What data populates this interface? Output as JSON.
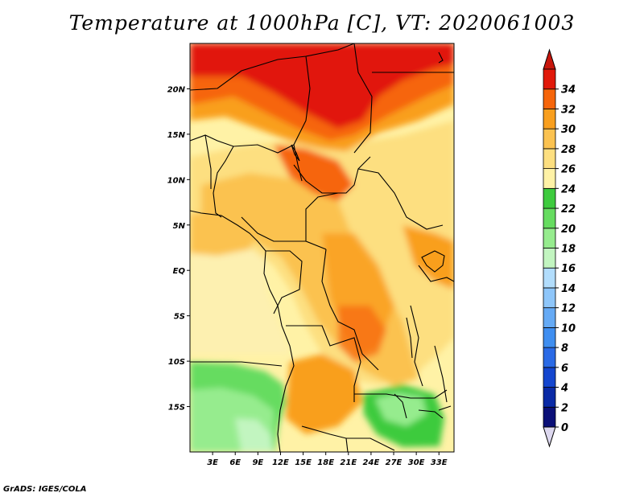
{
  "title": "Temperature at 1000hPa [C], VT: 2020061003",
  "credit": "GrADS: IGES/COLA",
  "map": {
    "lon_range": [
      0,
      35
    ],
    "lat_range": [
      -20,
      25
    ],
    "lat_ticks": [
      {
        "value": 20,
        "label": "20N"
      },
      {
        "value": 15,
        "label": "15N"
      },
      {
        "value": 10,
        "label": "10N"
      },
      {
        "value": 5,
        "label": "5N"
      },
      {
        "value": 0,
        "label": "EQ"
      },
      {
        "value": -5,
        "label": "5S"
      },
      {
        "value": -10,
        "label": "10S"
      },
      {
        "value": -15,
        "label": "15S"
      }
    ],
    "lon_ticks": [
      {
        "value": 3,
        "label": "3E"
      },
      {
        "value": 6,
        "label": "6E"
      },
      {
        "value": 9,
        "label": "9E"
      },
      {
        "value": 12,
        "label": "12E"
      },
      {
        "value": 15,
        "label": "15E"
      },
      {
        "value": 18,
        "label": "18E"
      },
      {
        "value": 21,
        "label": "21E"
      },
      {
        "value": 24,
        "label": "24E"
      },
      {
        "value": 27,
        "label": "27E"
      },
      {
        "value": 30,
        "label": "30E"
      },
      {
        "value": 33,
        "label": "33E"
      }
    ]
  },
  "colorbar": {
    "levels": [
      0,
      2,
      4,
      6,
      8,
      10,
      12,
      14,
      16,
      18,
      20,
      22,
      24,
      26,
      28,
      30,
      32,
      34
    ],
    "colors": [
      "#0b1078",
      "#0a2aa6",
      "#1446cf",
      "#2a6ae6",
      "#3f8ef0",
      "#65aaf5",
      "#8ec6fa",
      "#b2ddfc",
      "#c2f5c0",
      "#96ec8e",
      "#66dc60",
      "#3ecb3e",
      "#fff2a6",
      "#fddf80",
      "#fbc250",
      "#f99f1e",
      "#f6650a",
      "#e1190a"
    ],
    "under_color": "#ddd8ef",
    "over_color": "#c8160c"
  }
}
